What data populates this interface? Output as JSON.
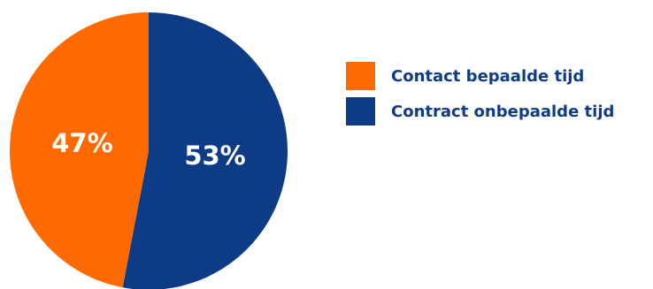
{
  "chart_data": {
    "type": "pie",
    "title": "",
    "slices": [
      {
        "label": "Contract onbepaalde tijd",
        "value": 53,
        "value_label": "53%",
        "color": "#0d3b85"
      },
      {
        "label": "Contact bepaalde tijd",
        "value": 47,
        "value_label": "47%",
        "color": "#ff6a00"
      }
    ],
    "legend": {
      "placement": "right",
      "items": [
        {
          "label": "Contact bepaalde tijd",
          "color": "#ff6a00"
        },
        {
          "label": "Contract onbepaalde tijd",
          "color": "#0d3b85"
        }
      ]
    }
  }
}
